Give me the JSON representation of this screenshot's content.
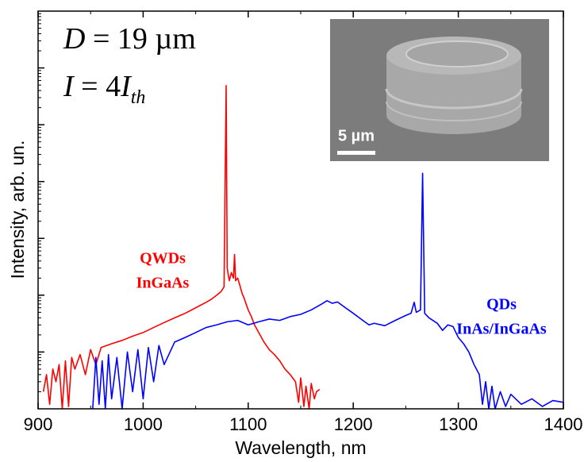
{
  "chart_data": {
    "type": "line",
    "xlabel": "Wavelength, nm",
    "ylabel": "Intensity, arb. un.",
    "xlim": [
      900,
      1400
    ],
    "xticks": [
      900,
      1000,
      1100,
      1200,
      1300,
      1400
    ],
    "ylim": [
      1,
      10000000
    ],
    "yticks": [
      10,
      100,
      1000,
      10000,
      100000,
      1000000
    ],
    "yscale": "log",
    "grid": false,
    "annotations": [
      {
        "segments": [
          {
            "text": "D",
            "style": "italic"
          },
          {
            "text": " = 19 µm",
            "style": "normal"
          }
        ]
      },
      {
        "segments": [
          {
            "text": "I",
            "style": "italic"
          },
          {
            "text": " = 4",
            "style": "normal"
          },
          {
            "text": "I",
            "style": "italic"
          },
          {
            "text": "th",
            "style": "italic-sub"
          }
        ]
      }
    ],
    "inset": {
      "scale_label": "5 µm"
    },
    "series": [
      {
        "name": [
          "QWDs",
          "InGaAs"
        ],
        "color": "#ff0000",
        "x": [
          905,
          908,
          911,
          914,
          917,
          920,
          923,
          926,
          929,
          932,
          935,
          940,
          945,
          950,
          955,
          960,
          970,
          980,
          990,
          1000,
          1010,
          1020,
          1030,
          1040,
          1050,
          1060,
          1065,
          1070,
          1074,
          1077,
          1079,
          1080,
          1082,
          1084,
          1086,
          1087,
          1088,
          1090,
          1092,
          1094,
          1096,
          1098,
          1100,
          1103,
          1106,
          1110,
          1115,
          1120,
          1125,
          1130,
          1135,
          1140,
          1145,
          1148,
          1150,
          1153,
          1155,
          1158,
          1160,
          1163,
          1165,
          1168
        ],
        "values": [
          2,
          4,
          1.2,
          5,
          3,
          6,
          1,
          7,
          1.1,
          8,
          5,
          9,
          4,
          11,
          6,
          12,
          14,
          16,
          19,
          22,
          27,
          33,
          40,
          48,
          60,
          75,
          85,
          100,
          115,
          140,
          490000,
          300,
          180,
          250,
          200,
          520,
          180,
          200,
          150,
          110,
          90,
          70,
          55,
          42,
          30,
          22,
          15,
          11,
          9,
          7,
          5,
          4,
          3,
          1.3,
          3.5,
          1.1,
          2.5,
          1,
          2.8,
          1.5,
          2,
          2.2
        ]
      },
      {
        "name": [
          "QDs",
          "InAs/InGaAs"
        ],
        "color": "#0000ff",
        "x": [
          952,
          955,
          958,
          961,
          964,
          967,
          970,
          975,
          980,
          985,
          990,
          995,
          1000,
          1005,
          1010,
          1015,
          1020,
          1030,
          1040,
          1050,
          1060,
          1070,
          1080,
          1090,
          1100,
          1110,
          1120,
          1130,
          1140,
          1150,
          1160,
          1170,
          1175,
          1180,
          1185,
          1190,
          1200,
          1210,
          1215,
          1220,
          1230,
          1240,
          1250,
          1255,
          1258,
          1260,
          1264,
          1266,
          1268,
          1272,
          1280,
          1285,
          1290,
          1295,
          1300,
          1305,
          1310,
          1315,
          1320,
          1323,
          1326,
          1329,
          1332,
          1335,
          1340,
          1345,
          1350,
          1360,
          1370,
          1380,
          1390,
          1400
        ],
        "values": [
          1,
          8,
          1.2,
          7,
          1,
          9,
          1.5,
          8,
          1,
          10,
          2,
          11,
          1.5,
          12,
          3,
          13,
          6,
          15,
          18,
          22,
          27,
          30,
          34,
          36,
          30,
          34,
          38,
          36,
          42,
          46,
          55,
          70,
          80,
          72,
          76,
          65,
          48,
          35,
          30,
          32,
          29,
          36,
          44,
          48,
          75,
          50,
          55,
          14000,
          48,
          40,
          32,
          24,
          30,
          28,
          18,
          14,
          10,
          6,
          4,
          1.2,
          3,
          1,
          2.5,
          1,
          2,
          1.1,
          1.8,
          1.2,
          1.5,
          1.1,
          1.4,
          1.3
        ]
      }
    ]
  }
}
